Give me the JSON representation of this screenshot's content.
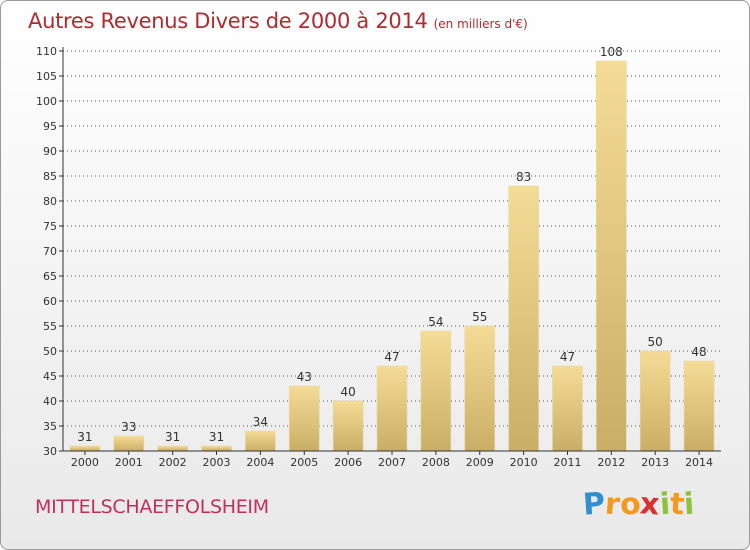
{
  "title": "Autres Revenus Divers de 2000 à 2014",
  "subtitle": "(en milliers d'€)",
  "commune": "MITTELSCHAEFFOLSHEIM",
  "logo": {
    "letters": [
      "P",
      "r",
      "o",
      "x",
      "i",
      "t",
      "i"
    ],
    "colors": [
      "#2f8fd0",
      "#f39a1e",
      "#f39a1e",
      "#d9312f",
      "#8fc23f",
      "#f39a1e",
      "#8fc23f"
    ]
  },
  "colors": {
    "bar_light": "#f5dc96",
    "bar_dark": "#c9ae66",
    "axis": "#333333",
    "grid": "#555555",
    "text": "#333333"
  },
  "chart_data": {
    "type": "bar",
    "categories": [
      "2000",
      "2001",
      "2002",
      "2003",
      "2004",
      "2005",
      "2006",
      "2007",
      "2008",
      "2009",
      "2010",
      "2011",
      "2012",
      "2013",
      "2014"
    ],
    "values": [
      31,
      33,
      31,
      31,
      34,
      43,
      40,
      47,
      54,
      55,
      83,
      47,
      108,
      50,
      48
    ],
    "data_labels": [
      "31",
      "33",
      "31",
      "31",
      "34",
      "43",
      "40",
      "47",
      "54",
      "55",
      "83",
      "47",
      "108",
      "50",
      "48"
    ],
    "ylim": [
      30,
      110
    ],
    "yticks": [
      "30",
      "35",
      "40",
      "45",
      "50",
      "55",
      "60",
      "65",
      "70",
      "75",
      "80",
      "85",
      "90",
      "95",
      "100",
      "105",
      "110"
    ],
    "grid": true,
    "xlabel": "",
    "ylabel": ""
  }
}
